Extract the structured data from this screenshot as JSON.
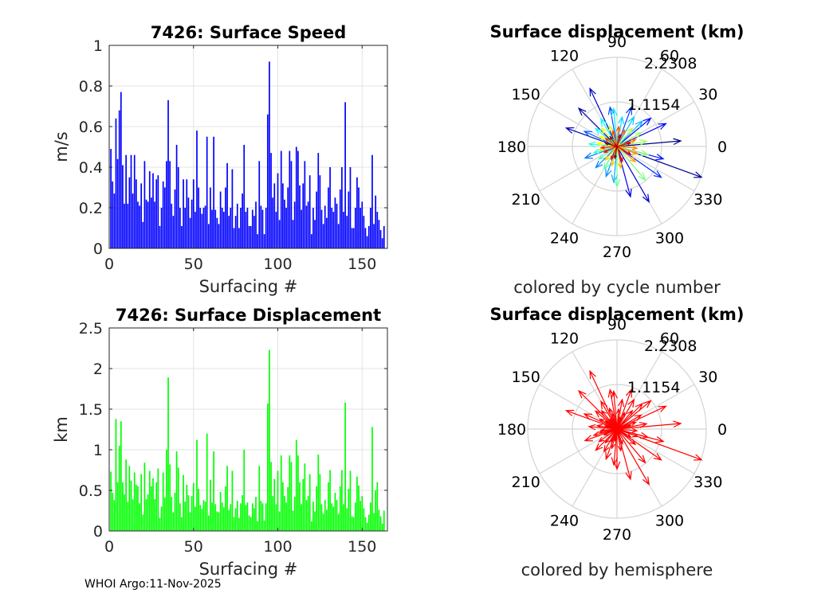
{
  "footer": "WHOI Argo:11-Nov-2025",
  "chart_data": [
    {
      "id": "speed",
      "type": "bar",
      "title": "7426: Surface Speed",
      "xlabel": "Surfacing #",
      "ylabel": "m/s",
      "xlim": [
        0,
        165
      ],
      "ylim": [
        0,
        1
      ],
      "xticks": [
        0,
        50,
        100,
        150
      ],
      "xtick_labels": [
        "0",
        "50",
        "100",
        "150"
      ],
      "yticks": [
        0,
        0.2,
        0.4,
        0.6,
        0.8,
        1
      ],
      "ytick_labels": [
        "0",
        "0.2",
        "0.4",
        "0.6",
        "0.8",
        "1"
      ],
      "grid": true,
      "color": "#0000ff",
      "x": [
        1,
        2,
        3,
        4,
        5,
        6,
        7,
        8,
        9,
        10,
        11,
        12,
        13,
        14,
        15,
        16,
        17,
        18,
        19,
        20,
        21,
        22,
        23,
        24,
        25,
        26,
        27,
        28,
        29,
        30,
        31,
        32,
        33,
        34,
        35,
        36,
        37,
        38,
        39,
        40,
        41,
        42,
        43,
        44,
        45,
        46,
        47,
        48,
        49,
        50,
        51,
        52,
        53,
        54,
        55,
        56,
        57,
        58,
        59,
        60,
        61,
        62,
        63,
        64,
        65,
        66,
        67,
        68,
        69,
        70,
        71,
        72,
        73,
        74,
        75,
        76,
        77,
        78,
        79,
        80,
        81,
        82,
        83,
        84,
        85,
        86,
        87,
        88,
        89,
        90,
        91,
        92,
        93,
        94,
        95,
        96,
        97,
        98,
        99,
        100,
        101,
        102,
        103,
        104,
        105,
        106,
        107,
        108,
        109,
        110,
        111,
        112,
        113,
        114,
        115,
        116,
        117,
        118,
        119,
        120,
        121,
        122,
        123,
        124,
        125,
        126,
        127,
        128,
        129,
        130,
        131,
        132,
        133,
        134,
        135,
        136,
        137,
        138,
        139,
        140,
        141,
        142,
        143,
        144,
        145,
        146,
        147,
        148,
        149,
        150,
        151,
        152,
        153,
        154,
        155,
        156,
        157,
        158,
        159,
        160,
        161,
        162,
        163
      ],
      "values": [
        0.49,
        0.33,
        0.27,
        0.64,
        0.44,
        0.68,
        0.77,
        0.41,
        0.22,
        0.46,
        0.22,
        0.35,
        0.46,
        0.27,
        0.46,
        0.34,
        0.23,
        0.21,
        0.32,
        0.13,
        0.43,
        0.24,
        0.23,
        0.38,
        0.25,
        0.37,
        0.23,
        0.34,
        0.36,
        0.11,
        0.2,
        0.33,
        0.3,
        0.43,
        0.73,
        0.43,
        0.22,
        0.16,
        0.29,
        0.51,
        0.4,
        0.2,
        0.11,
        0.34,
        0.2,
        0.34,
        0.25,
        0.15,
        0.24,
        0.34,
        0.18,
        0.58,
        0.3,
        0.2,
        0.17,
        0.2,
        0.21,
        0.55,
        0.12,
        0.3,
        0.19,
        0.55,
        0.19,
        0.15,
        0.12,
        0.28,
        0.2,
        0.18,
        0.3,
        0.42,
        0.16,
        0.2,
        0.39,
        0.1,
        0.16,
        0.22,
        0.1,
        0.2,
        0.27,
        0.51,
        0.18,
        0.2,
        0.11,
        0.11,
        0.19,
        0.16,
        0.23,
        0.07,
        0.43,
        0.21,
        0.19,
        0.07,
        0.2,
        0.66,
        0.92,
        0.47,
        0.25,
        0.32,
        0.18,
        0.37,
        0.14,
        0.48,
        0.32,
        0.24,
        0.2,
        0.3,
        0.48,
        0.43,
        0.14,
        0.23,
        0.5,
        0.48,
        0.31,
        0.19,
        0.32,
        0.43,
        0.21,
        0.23,
        0.36,
        0.07,
        0.2,
        0.14,
        0.28,
        0.47,
        0.36,
        0.19,
        0.12,
        0.21,
        0.15,
        0.3,
        0.4,
        0.2,
        0.18,
        0.25,
        0.22,
        0.12,
        0.29,
        0.4,
        0.18,
        0.72,
        0.16,
        0.28,
        0.4,
        0.1,
        0.1,
        0.2,
        0.35,
        0.3,
        0.2,
        0.23,
        0.16,
        0.1,
        0.06,
        0.11,
        0.2,
        0.46,
        0.12,
        0.26,
        0.18,
        0.14,
        0.09,
        0.05,
        0.11
      ]
    },
    {
      "id": "displacement",
      "type": "bar",
      "title": "7426: Surface Displacement",
      "xlabel": "Surfacing #",
      "ylabel": "km",
      "xlim": [
        0,
        165
      ],
      "ylim": [
        0,
        2.5
      ],
      "xticks": [
        0,
        50,
        100,
        150
      ],
      "xtick_labels": [
        "0",
        "50",
        "100",
        "150"
      ],
      "yticks": [
        0,
        0.5,
        1,
        1.5,
        2,
        2.5
      ],
      "ytick_labels": [
        "0",
        "0.5",
        "1",
        "1.5",
        "2",
        "2.5"
      ],
      "grid": true,
      "color": "#00ff00",
      "x": [
        1,
        2,
        3,
        4,
        5,
        6,
        7,
        8,
        9,
        10,
        11,
        12,
        13,
        14,
        15,
        16,
        17,
        18,
        19,
        20,
        21,
        22,
        23,
        24,
        25,
        26,
        27,
        28,
        29,
        30,
        31,
        32,
        33,
        34,
        35,
        36,
        37,
        38,
        39,
        40,
        41,
        42,
        43,
        44,
        45,
        46,
        47,
        48,
        49,
        50,
        51,
        52,
        53,
        54,
        55,
        56,
        57,
        58,
        59,
        60,
        61,
        62,
        63,
        64,
        65,
        66,
        67,
        68,
        69,
        70,
        71,
        72,
        73,
        74,
        75,
        76,
        77,
        78,
        79,
        80,
        81,
        82,
        83,
        84,
        85,
        86,
        87,
        88,
        89,
        90,
        91,
        92,
        93,
        94,
        95,
        96,
        97,
        98,
        99,
        100,
        101,
        102,
        103,
        104,
        105,
        106,
        107,
        108,
        109,
        110,
        111,
        112,
        113,
        114,
        115,
        116,
        117,
        118,
        119,
        120,
        121,
        122,
        123,
        124,
        125,
        126,
        127,
        128,
        129,
        130,
        131,
        132,
        133,
        134,
        135,
        136,
        137,
        138,
        139,
        140,
        141,
        142,
        143,
        144,
        145,
        146,
        147,
        148,
        149,
        150,
        151,
        152,
        153,
        154,
        155,
        156,
        157,
        158,
        159,
        160,
        161,
        162,
        163
      ],
      "values": [
        0.73,
        0.47,
        0.38,
        1.38,
        0.6,
        1.05,
        1.35,
        0.6,
        0.45,
        0.88,
        0.36,
        0.8,
        0.62,
        0.39,
        0.72,
        0.57,
        0.55,
        0.34,
        0.7,
        0.2,
        0.84,
        0.39,
        0.45,
        0.74,
        0.55,
        0.65,
        0.39,
        0.6,
        0.77,
        0.16,
        0.3,
        0.72,
        0.41,
        1.0,
        1.89,
        0.82,
        0.42,
        0.23,
        0.47,
        0.98,
        0.78,
        0.34,
        0.17,
        0.69,
        0.36,
        0.57,
        0.44,
        0.23,
        0.43,
        0.59,
        0.3,
        1.12,
        0.52,
        0.32,
        0.27,
        0.38,
        0.36,
        1.2,
        0.19,
        0.63,
        0.35,
        0.98,
        0.33,
        0.24,
        0.23,
        0.48,
        0.35,
        0.29,
        0.55,
        0.8,
        0.26,
        0.33,
        0.74,
        0.17,
        0.28,
        0.37,
        0.16,
        0.34,
        0.44,
        1.0,
        0.32,
        0.35,
        0.19,
        0.17,
        0.34,
        0.28,
        0.42,
        0.12,
        0.8,
        0.37,
        0.34,
        0.13,
        0.34,
        1.57,
        2.23,
        0.85,
        0.43,
        0.64,
        0.33,
        0.74,
        0.24,
        0.93,
        0.6,
        0.43,
        0.35,
        0.54,
        0.93,
        0.85,
        0.25,
        0.42,
        1.12,
        0.93,
        0.6,
        0.33,
        0.64,
        0.83,
        0.38,
        0.43,
        0.7,
        0.12,
        0.36,
        0.24,
        0.55,
        0.94,
        0.7,
        0.33,
        0.21,
        0.38,
        0.26,
        0.6,
        0.75,
        0.34,
        0.3,
        0.47,
        0.38,
        0.21,
        0.55,
        0.75,
        0.33,
        1.58,
        0.28,
        0.52,
        0.74,
        0.18,
        0.17,
        0.35,
        0.67,
        0.56,
        0.37,
        0.43,
        0.28,
        0.17,
        0.1,
        0.2,
        0.35,
        1.28,
        0.22,
        0.5,
        0.6,
        0.26,
        0.18,
        0.09,
        0.25
      ]
    },
    {
      "id": "polar-cycle",
      "type": "polar-compass",
      "title": "Surface displacement (km)",
      "caption": "colored by cycle number",
      "rmax": 2.2308,
      "ring_values": [
        1.1154,
        2.2308
      ],
      "ring_labels": [
        "1.1154",
        "2.2308"
      ],
      "theta_labels": [
        "0",
        "30",
        "60",
        "90",
        "120",
        "150",
        "180",
        "210",
        "240",
        "270",
        "300",
        "330"
      ],
      "colormap": "jet",
      "vectors_deg_km": [
        [
          5,
          1.6
        ],
        [
          -20,
          2.25
        ],
        [
          135,
          1.35
        ],
        [
          160,
          1.35
        ],
        [
          115,
          1.6
        ],
        [
          300,
          1.6
        ],
        [
          285,
          1.3
        ],
        [
          25,
          1.35
        ],
        [
          40,
          1.1
        ],
        [
          -15,
          1.2
        ],
        [
          325,
          1.35
        ],
        [
          70,
          1.05
        ],
        [
          100,
          1.0
        ],
        [
          155,
          0.9
        ],
        [
          200,
          0.85
        ],
        [
          225,
          0.75
        ],
        [
          250,
          0.8
        ],
        [
          265,
          0.9
        ],
        [
          45,
          0.9
        ],
        [
          60,
          0.85
        ],
        [
          80,
          0.75
        ],
        [
          95,
          0.95
        ],
        [
          120,
          0.8
        ],
        [
          140,
          0.7
        ],
        [
          175,
          0.7
        ],
        [
          195,
          0.6
        ],
        [
          215,
          0.55
        ],
        [
          240,
          0.65
        ],
        [
          270,
          1.0
        ],
        [
          310,
          1.1
        ],
        [
          345,
          0.8
        ],
        [
          10,
          0.75
        ],
        [
          30,
          0.7
        ],
        [
          50,
          0.6
        ],
        [
          110,
          0.55
        ],
        [
          130,
          0.6
        ],
        [
          150,
          0.5
        ],
        [
          170,
          0.5
        ],
        [
          190,
          0.45
        ],
        [
          230,
          0.45
        ],
        [
          255,
          0.5
        ],
        [
          280,
          0.55
        ],
        [
          320,
          0.6
        ],
        [
          340,
          0.55
        ],
        [
          355,
          0.5
        ],
        [
          20,
          0.5
        ],
        [
          65,
          0.45
        ],
        [
          85,
          0.5
        ],
        [
          105,
          0.4
        ],
        [
          145,
          0.35
        ],
        [
          185,
          0.4
        ],
        [
          205,
          0.35
        ],
        [
          245,
          0.35
        ],
        [
          290,
          0.4
        ],
        [
          330,
          0.4
        ],
        [
          15,
          0.35
        ],
        [
          75,
          0.3
        ],
        [
          125,
          0.3
        ],
        [
          165,
          0.3
        ],
        [
          260,
          0.3
        ]
      ]
    },
    {
      "id": "polar-hemisphere",
      "type": "polar-compass",
      "title": "Surface displacement (km)",
      "caption": "colored by hemisphere",
      "rmax": 2.2308,
      "ring_values": [
        1.1154,
        2.2308
      ],
      "ring_labels": [
        "1.1154",
        "2.2308"
      ],
      "theta_labels": [
        "0",
        "30",
        "60",
        "90",
        "120",
        "150",
        "180",
        "210",
        "240",
        "270",
        "300",
        "330"
      ],
      "color": "#ff0000",
      "vectors_deg_km": [
        [
          5,
          1.6
        ],
        [
          -20,
          2.25
        ],
        [
          135,
          1.35
        ],
        [
          160,
          1.35
        ],
        [
          115,
          1.6
        ],
        [
          300,
          1.6
        ],
        [
          285,
          1.3
        ],
        [
          25,
          1.35
        ],
        [
          40,
          1.1
        ],
        [
          -15,
          1.2
        ],
        [
          325,
          1.35
        ],
        [
          70,
          1.05
        ],
        [
          100,
          1.0
        ],
        [
          155,
          0.9
        ],
        [
          200,
          0.85
        ],
        [
          225,
          0.75
        ],
        [
          250,
          0.8
        ],
        [
          265,
          0.9
        ],
        [
          45,
          0.9
        ],
        [
          60,
          0.85
        ],
        [
          80,
          0.75
        ],
        [
          95,
          0.95
        ],
        [
          120,
          0.8
        ],
        [
          140,
          0.7
        ],
        [
          175,
          0.7
        ],
        [
          195,
          0.6
        ],
        [
          215,
          0.55
        ],
        [
          240,
          0.65
        ],
        [
          270,
          1.0
        ],
        [
          310,
          1.1
        ],
        [
          345,
          0.8
        ],
        [
          10,
          0.75
        ],
        [
          30,
          0.7
        ],
        [
          50,
          0.6
        ],
        [
          110,
          0.55
        ],
        [
          130,
          0.6
        ],
        [
          150,
          0.5
        ],
        [
          170,
          0.5
        ],
        [
          190,
          0.45
        ],
        [
          230,
          0.45
        ],
        [
          255,
          0.5
        ],
        [
          280,
          0.55
        ],
        [
          320,
          0.6
        ],
        [
          340,
          0.55
        ],
        [
          355,
          0.5
        ],
        [
          20,
          0.5
        ],
        [
          65,
          0.45
        ],
        [
          85,
          0.5
        ],
        [
          105,
          0.4
        ],
        [
          145,
          0.35
        ],
        [
          185,
          0.4
        ],
        [
          205,
          0.35
        ],
        [
          245,
          0.35
        ],
        [
          290,
          0.4
        ],
        [
          330,
          0.4
        ],
        [
          15,
          0.35
        ],
        [
          75,
          0.3
        ],
        [
          125,
          0.3
        ],
        [
          165,
          0.3
        ],
        [
          260,
          0.3
        ]
      ]
    }
  ]
}
